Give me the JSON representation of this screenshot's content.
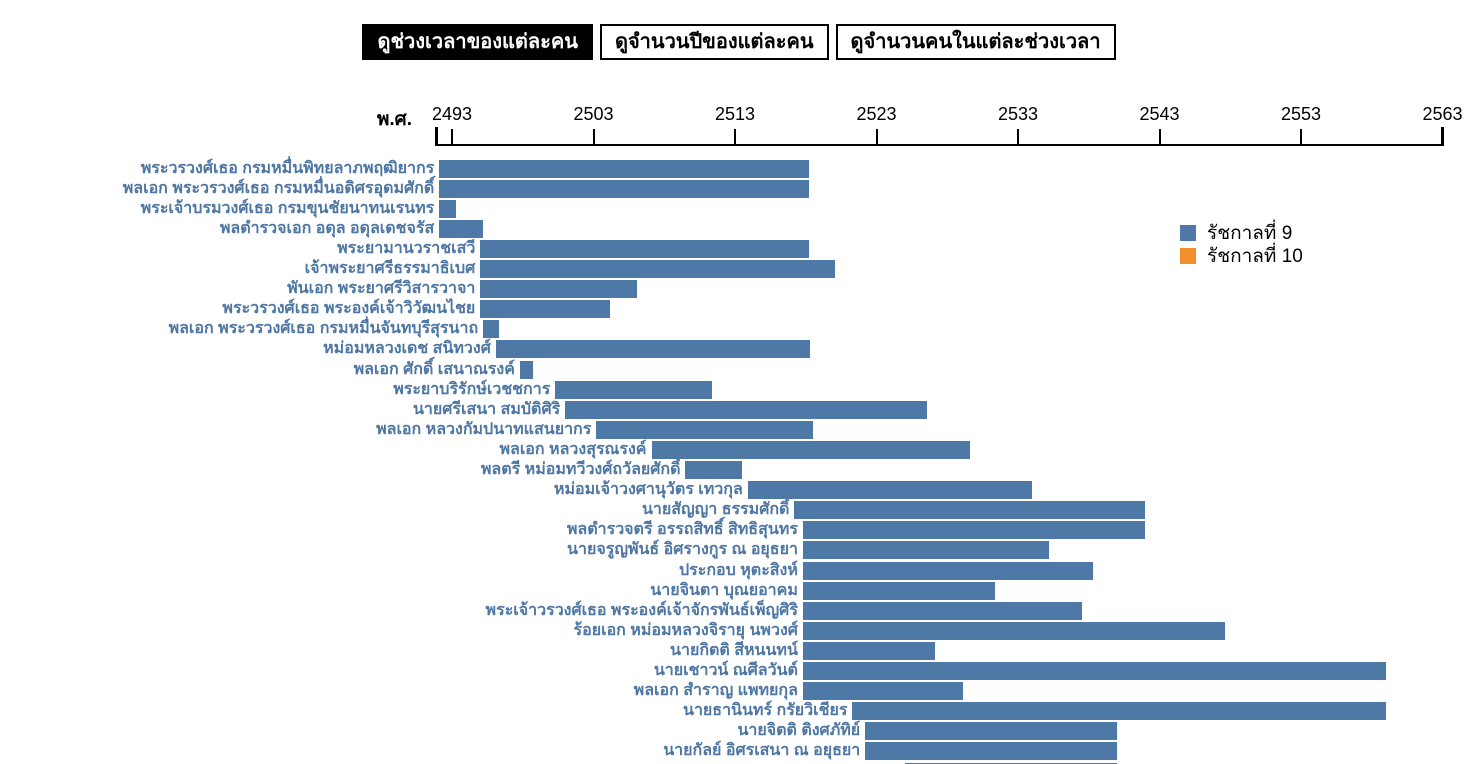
{
  "tabs": [
    {
      "label": "ดูช่วงเวลาของแต่ละคน",
      "active": true
    },
    {
      "label": "ดูจำนวนปีของแต่ละคน",
      "active": false
    },
    {
      "label": "ดูจำนวนคนในแต่ละช่วงเวลา",
      "active": false
    }
  ],
  "axis": {
    "unit": "พ.ศ.",
    "ticks": [
      2493,
      2503,
      2513,
      2523,
      2533,
      2543,
      2553,
      2563
    ],
    "domain_start": 2491.9,
    "domain_end": 2563
  },
  "legend": [
    {
      "label": "รัชกาลที่ 9",
      "color": "#4e79a7"
    },
    {
      "label": "รัชกาลที่ 10",
      "color": "#f28e2b"
    }
  ],
  "chart_data": {
    "type": "bar",
    "subtype": "horizontal-timeline-gantt",
    "title": "",
    "xlabel": "พ.ศ.",
    "x_domain": [
      2491.9,
      2563
    ],
    "x_ticks": [
      2493,
      2503,
      2513,
      2523,
      2533,
      2543,
      2553,
      2563
    ],
    "legend_position": "right",
    "bar_color_by_reign": {
      "9": "#4e79a7",
      "10": "#f28e2b"
    },
    "series": [
      {
        "name": "พระวรวงศ์เธอ กรมหมื่นพิทยลาภพฤฒิยากร",
        "start": 2492.1,
        "end": 2518.2,
        "reign": "9"
      },
      {
        "name": "พลเอก พระวรวงศ์เธอ กรมหมื่นอดิศรอุดมศักดิ์",
        "start": 2492.1,
        "end": 2518.2,
        "reign": "9"
      },
      {
        "name": "พระเจ้าบรมวงศ์เธอ กรมขุนชัยนาทนเรนทร",
        "start": 2492.1,
        "end": 2493.3,
        "reign": "9"
      },
      {
        "name": "พลตำรวจเอก อดุล อดุลเดชจรัส",
        "start": 2492.1,
        "end": 2495.2,
        "reign": "9"
      },
      {
        "name": "พระยามานวราชเสวี",
        "start": 2495.0,
        "end": 2518.2,
        "reign": "9"
      },
      {
        "name": "เจ้าพระยาศรีธรรมาธิเบศ",
        "start": 2495.0,
        "end": 2520.1,
        "reign": "9"
      },
      {
        "name": "พันเอก พระยาศรีวิสารวาจา",
        "start": 2495.0,
        "end": 2506.1,
        "reign": "9"
      },
      {
        "name": "พระวรวงศ์เธอ พระองค์เจ้าวิวัฒนไชย",
        "start": 2495.0,
        "end": 2504.2,
        "reign": "9"
      },
      {
        "name": "พลเอก พระวรวงศ์เธอ กรมหมื่นจันทบุรีสุรนาถ",
        "start": 2495.2,
        "end": 2496.3,
        "reign": "9"
      },
      {
        "name": "หม่อมหลวงเดช สนิทวงศ์",
        "start": 2496.1,
        "end": 2518.3,
        "reign": "9"
      },
      {
        "name": "พลเอก ศักดิ์ เสนาณรงค์",
        "start": 2497.8,
        "end": 2498.7,
        "reign": "9"
      },
      {
        "name": "พระยาบริรักษ์เวชชการ",
        "start": 2500.3,
        "end": 2511.4,
        "reign": "9"
      },
      {
        "name": "นายศรีเสนา สมบัติศิริ",
        "start": 2501.0,
        "end": 2526.6,
        "reign": "9"
      },
      {
        "name": "พลเอก หลวงกัมปนาทแสนยากร",
        "start": 2503.2,
        "end": 2518.5,
        "reign": "9"
      },
      {
        "name": "พลเอก หลวงสุรณรงค์",
        "start": 2507.1,
        "end": 2529.6,
        "reign": "9"
      },
      {
        "name": "พลตรี หม่อมทวีวงศ์ถวัลยศักดิ์",
        "start": 2509.5,
        "end": 2513.5,
        "reign": "9"
      },
      {
        "name": "หม่อมเจ้าวงศานุวัตร เทวกุล",
        "start": 2513.9,
        "end": 2534.0,
        "reign": "9"
      },
      {
        "name": "นายสัญญา ธรรมศักดิ์",
        "start": 2517.2,
        "end": 2542.0,
        "reign": "9"
      },
      {
        "name": "พลตำรวจตรี อรรถสิทธิ์ สิทธิสุนทร",
        "start": 2517.8,
        "end": 2542.0,
        "reign": "9"
      },
      {
        "name": "นายจรูญพันธ์ อิศรางกูร ณ อยุธยา",
        "start": 2517.8,
        "end": 2535.2,
        "reign": "9"
      },
      {
        "name": "ประกอบ หุตะสิงห์",
        "start": 2517.8,
        "end": 2538.3,
        "reign": "9"
      },
      {
        "name": "นายจินตา บุณยอาคม",
        "start": 2517.8,
        "end": 2531.4,
        "reign": "9"
      },
      {
        "name": "พระเจ้าวรวงศ์เธอ พระองค์เจ้าจักรพันธ์เพ็ญศิริ",
        "start": 2517.8,
        "end": 2537.5,
        "reign": "9"
      },
      {
        "name": "ร้อยเอก หม่อมหลวงจิรายุ นพวงศ์",
        "start": 2517.8,
        "end": 2547.6,
        "reign": "9"
      },
      {
        "name": "นายกิตติ สีหนนทน์",
        "start": 2517.8,
        "end": 2527.1,
        "reign": "9"
      },
      {
        "name": "นายเชาวน์ ณศีลวันต์",
        "start": 2517.8,
        "end": 2559.0,
        "reign": "9"
      },
      {
        "name": "พลเอก สำราญ แพทยกุล",
        "start": 2517.8,
        "end": 2529.1,
        "reign": "9"
      },
      {
        "name": "นายธานินทร์ กรัยวิเชียร",
        "start": 2521.3,
        "end": 2559.0,
        "reign": "9"
      },
      {
        "name": "นายจิตติ ติงศภัทิย์",
        "start": 2522.2,
        "end": 2540.0,
        "reign": "9"
      },
      {
        "name": "นายกัลย์ อิศรเสนา ณ อยุธยา",
        "start": 2522.2,
        "end": 2540.0,
        "reign": "9"
      },
      {
        "name": "",
        "start": 2525.0,
        "end": 2540.0,
        "reign": "9",
        "clipped": true
      }
    ]
  },
  "colors": {
    "bar_reign9": "#4e79a7",
    "bar_reign10": "#f28e2b",
    "person_label": "#4d76a3",
    "active_tab_bg": "#000000",
    "active_tab_text": "#ffffff"
  }
}
